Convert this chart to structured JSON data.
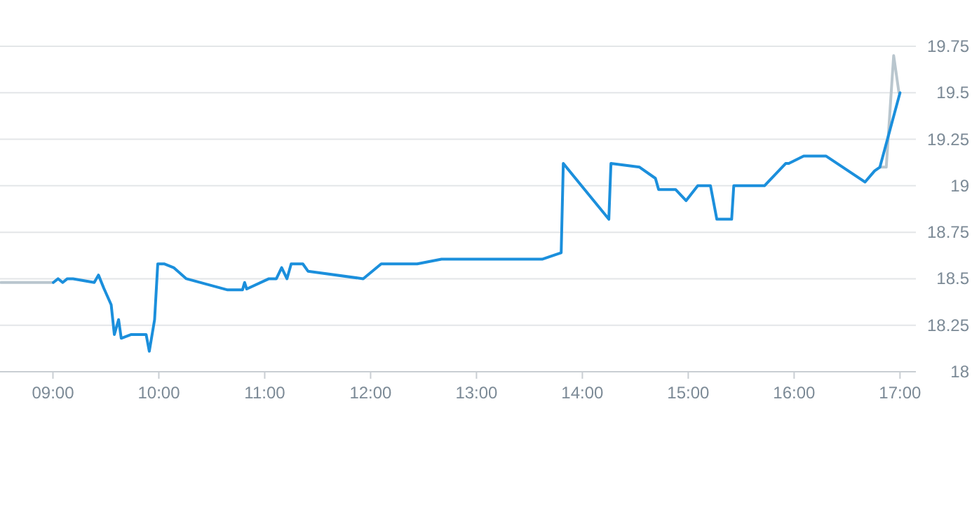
{
  "chart_data": {
    "type": "line",
    "series": [
      {
        "color": "#b9c6ce",
        "x": [
          8.51,
          9.0,
          9.5,
          16.81,
          16.87,
          16.94,
          16.99
        ],
        "values": [
          18.48,
          18.48,
          null,
          19.1,
          19.1,
          19.7,
          19.5
        ]
      },
      {
        "color": "#1b8fdc",
        "x": [
          9.004,
          9.049,
          9.092,
          9.136,
          9.19,
          9.39,
          9.43,
          9.48,
          9.55,
          9.58,
          9.62,
          9.645,
          9.74,
          9.88,
          9.91,
          9.96,
          9.99,
          10.05,
          10.14,
          10.26,
          10.65,
          10.79,
          10.81,
          10.83,
          11.04,
          11.11,
          11.16,
          11.21,
          11.25,
          11.36,
          11.41,
          11.93,
          12.1,
          12.44,
          12.67,
          13.62,
          13.8,
          13.82,
          14.25,
          14.27,
          14.54,
          14.69,
          14.72,
          14.88,
          14.98,
          15.09,
          15.21,
          15.27,
          15.41,
          15.43,
          15.72,
          15.92,
          15.95,
          16.09,
          16.3,
          16.67,
          16.76,
          16.81,
          17.0
        ],
        "values": [
          18.48,
          18.5,
          18.48,
          18.5,
          18.5,
          18.48,
          18.52,
          18.45,
          18.36,
          18.2,
          18.28,
          18.18,
          18.2,
          18.2,
          18.11,
          18.28,
          18.58,
          18.58,
          18.56,
          18.5,
          18.44,
          18.44,
          18.48,
          18.445,
          18.5,
          18.5,
          18.56,
          18.5,
          18.58,
          18.58,
          18.54,
          18.5,
          18.58,
          18.58,
          18.605,
          18.605,
          18.64,
          19.12,
          18.82,
          19.12,
          19.1,
          19.04,
          18.98,
          18.98,
          18.92,
          19.0,
          19.0,
          18.82,
          18.82,
          19.0,
          19.0,
          19.12,
          19.12,
          19.16,
          19.16,
          19.02,
          19.08,
          19.1,
          19.5
        ]
      }
    ],
    "xlim": [
      8.5,
      17.15
    ],
    "ylim": [
      18,
      19.75
    ],
    "xticks": [
      {
        "value": 9,
        "label": "09:00"
      },
      {
        "value": 10,
        "label": "10:00"
      },
      {
        "value": 11,
        "label": "11:00"
      },
      {
        "value": 12,
        "label": "12:00"
      },
      {
        "value": 13,
        "label": "13:00"
      },
      {
        "value": 14,
        "label": "14:00"
      },
      {
        "value": 15,
        "label": "15:00"
      },
      {
        "value": 16,
        "label": "16:00"
      },
      {
        "value": 17,
        "label": "17:00"
      }
    ],
    "yticks": [
      18,
      18.25,
      18.5,
      18.75,
      19,
      19.25,
      19.5,
      19.75
    ],
    "grid": "y",
    "marker": "none",
    "line_style": "solid"
  }
}
